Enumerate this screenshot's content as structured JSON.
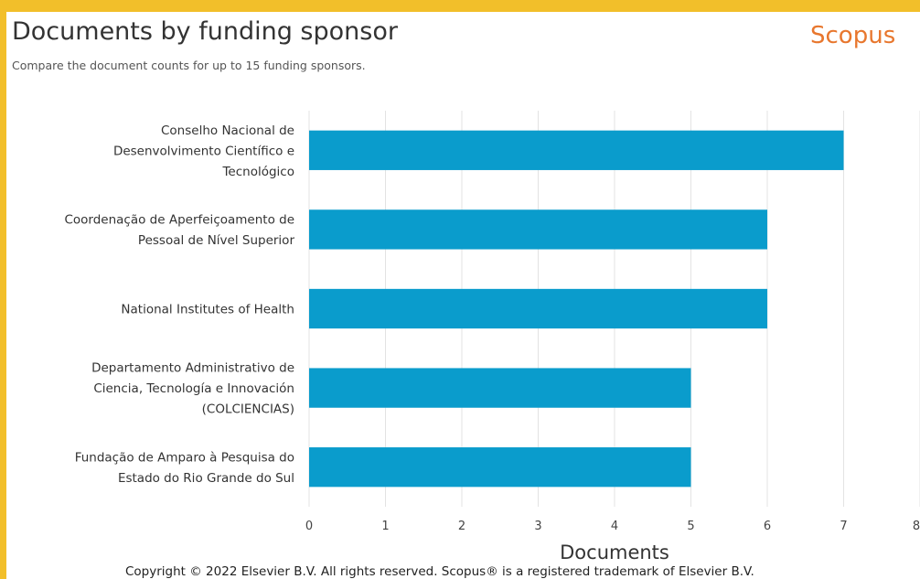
{
  "header": {
    "title": "Documents by funding sponsor",
    "subtitle": "Compare the document counts for up to 15 funding sponsors.",
    "brand": "Scopus"
  },
  "footer": {
    "copyright": "Copyright © 2022 Elsevier B.V. All rights reserved. Scopus® is a registered trademark of Elsevier B.V."
  },
  "colors": {
    "bar": "#0a9ccc",
    "frame": "#f2bf2a",
    "brand": "#e8772e",
    "grid": "#e3e3e3"
  },
  "chart_data": {
    "type": "bar",
    "orientation": "horizontal",
    "categories": [
      [
        "Conselho Nacional de",
        "Desenvolvimento Científico e",
        "Tecnológico"
      ],
      [
        "Coordenação de Aperfeiçoamento de",
        "Pessoal de Nível Superior"
      ],
      [
        "National Institutes of Health"
      ],
      [
        "Departamento Administrativo de",
        "Ciencia, Tecnología e Innovación",
        "(COLCIENCIAS)"
      ],
      [
        "Fundação de Amparo à Pesquisa do",
        "Estado do Rio Grande do Sul"
      ]
    ],
    "values": [
      7,
      6,
      6,
      5,
      5
    ],
    "xlabel": "Documents",
    "ylabel": "",
    "xlim": [
      0,
      8
    ],
    "xticks": [
      "0",
      "1",
      "2",
      "3",
      "4",
      "5",
      "6",
      "7",
      "8"
    ],
    "grid": true,
    "legend": "none"
  }
}
